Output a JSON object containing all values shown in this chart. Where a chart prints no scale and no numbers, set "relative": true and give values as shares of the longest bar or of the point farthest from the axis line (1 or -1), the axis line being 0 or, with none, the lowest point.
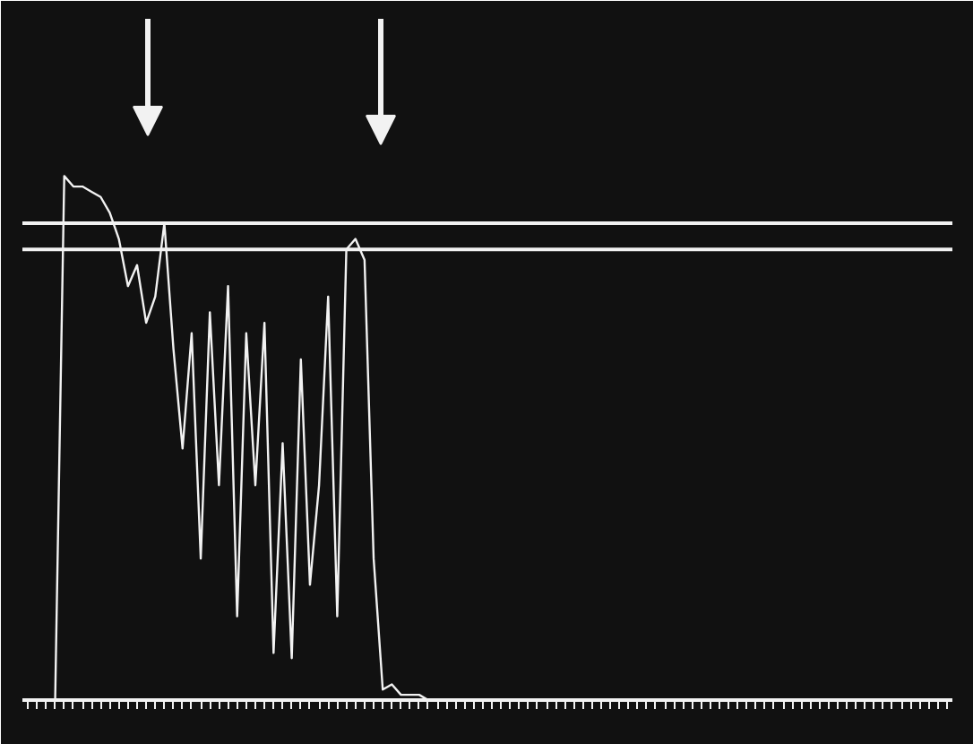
{
  "chart_data": {
    "type": "line",
    "relative": true,
    "marker": "none",
    "line_style": "solid",
    "grid": false,
    "categories": [
      null,
      null,
      null,
      null,
      null,
      null,
      null,
      null,
      null,
      null,
      null,
      null,
      null,
      null,
      null,
      null,
      null,
      null,
      null,
      null,
      null,
      null,
      null,
      null,
      null,
      null,
      null,
      null,
      null,
      null,
      null,
      null,
      null,
      null,
      null,
      null,
      null,
      null,
      null,
      null,
      null,
      null,
      null,
      null,
      null,
      null,
      null,
      null,
      null,
      null,
      null,
      null,
      null,
      null,
      null,
      null,
      null,
      null,
      null,
      null,
      null,
      null,
      null,
      null,
      null,
      null,
      null,
      null,
      null,
      null,
      null,
      null,
      null,
      null,
      null,
      null,
      null,
      null,
      null,
      null,
      null,
      null,
      null,
      null,
      null,
      null,
      null,
      null,
      null,
      null,
      null,
      null,
      null,
      null,
      null,
      null,
      null,
      null,
      null,
      null,
      null,
      null
    ],
    "series": [
      {
        "color": "#f2f2f2",
        "values": [
          0,
          0,
          0,
          0,
          1.0,
          0.98,
          0.98,
          0.97,
          0.96,
          0.93,
          0.88,
          0.79,
          0.83,
          0.72,
          0.77,
          0.91,
          0.67,
          0.48,
          0.7,
          0.27,
          0.74,
          0.41,
          0.79,
          0.16,
          0.7,
          0.41,
          0.72,
          0.09,
          0.49,
          0.08,
          0.65,
          0.22,
          0.41,
          0.77,
          0.16,
          0.86,
          0.88,
          0.84,
          0.27,
          0.02,
          0.03,
          0.01,
          0.01,
          0.01,
          0,
          0,
          0,
          0,
          0,
          0,
          0,
          0,
          0,
          0,
          0,
          0,
          0,
          0,
          0,
          0,
          0,
          0,
          0,
          0,
          0,
          0,
          0,
          0,
          0,
          0,
          0,
          0,
          0,
          0,
          0,
          0,
          0,
          0,
          0,
          0,
          0,
          0,
          0,
          0,
          0,
          0,
          0,
          0,
          0,
          0,
          0,
          0,
          0,
          0,
          0,
          0,
          0,
          0,
          0,
          0,
          0,
          0
        ]
      }
    ],
    "ref_lines": [
      {
        "axis": "y",
        "value": 0.91,
        "color": "#f2f2f2"
      },
      {
        "axis": "y",
        "value": 0.86,
        "color": "#f2f2f2"
      }
    ]
  }
}
